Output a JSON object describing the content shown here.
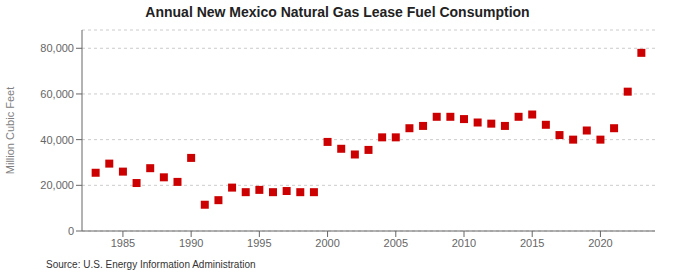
{
  "chart_data": {
    "type": "scatter",
    "title": "Annual New Mexico Natural Gas Lease Fuel Consumption",
    "ylabel": "Million Cubic Feet",
    "source": "Source: U.S. Energy Information Administration",
    "x": [
      1983,
      1984,
      1985,
      1986,
      1987,
      1988,
      1989,
      1990,
      1991,
      1992,
      1993,
      1994,
      1995,
      1996,
      1997,
      1998,
      1999,
      2000,
      2001,
      2002,
      2003,
      2004,
      2005,
      2006,
      2007,
      2008,
      2009,
      2010,
      2011,
      2012,
      2013,
      2014,
      2015,
      2016,
      2017,
      2018,
      2019,
      2020,
      2021,
      2022,
      2023
    ],
    "values": [
      25500,
      29500,
      26000,
      21000,
      27500,
      23500,
      21500,
      32000,
      11500,
      13500,
      19000,
      17000,
      18000,
      17000,
      17500,
      17000,
      17000,
      39000,
      36000,
      33500,
      35500,
      41000,
      41000,
      45000,
      46000,
      50000,
      50000,
      49000,
      47500,
      47000,
      46000,
      50000,
      51000,
      46500,
      42000,
      40000,
      44000,
      40000,
      45000,
      61000,
      78000
    ],
    "color": "#cc0000",
    "marker": "square",
    "xlim": [
      1982,
      2024
    ],
    "xticks": [
      1985,
      1990,
      1995,
      2000,
      2005,
      2010,
      2015,
      2020
    ],
    "ylim": [
      0,
      88000
    ],
    "yticks": [
      0,
      {
        "value": 20000,
        "label": "20,000"
      },
      {
        "value": 40000,
        "label": "40,000"
      },
      {
        "value": 60000,
        "label": "60,000"
      },
      {
        "value": 80000,
        "label": "80,000"
      }
    ],
    "grid": "y"
  }
}
